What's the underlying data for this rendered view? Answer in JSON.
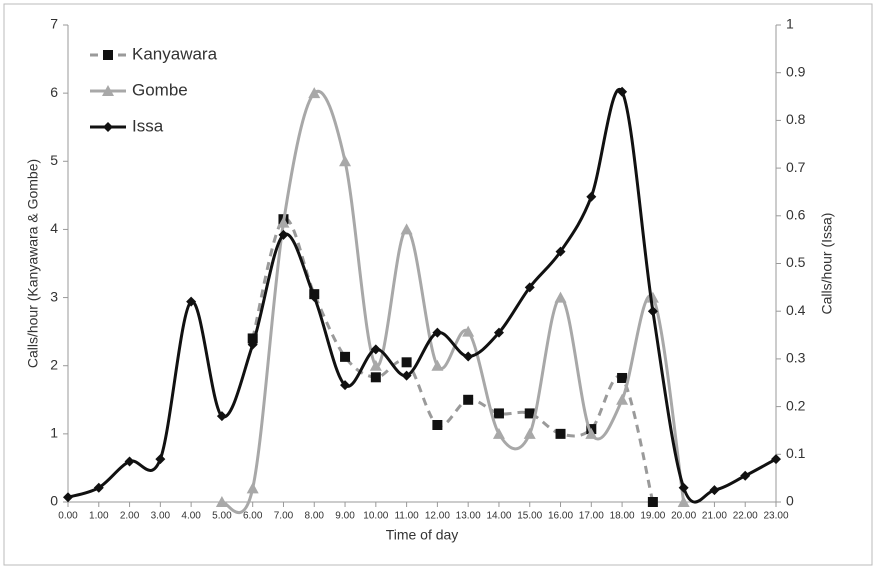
{
  "chart_data": {
    "type": "line",
    "x_label": "Time of day",
    "y_label": "Calls/hour (Kanyawara & Gombe)",
    "y2_label": "Calls/hour (Issa)",
    "categories": [
      "0.00",
      "1.00",
      "2.00",
      "3.00",
      "4.00",
      "5.00",
      "6.00",
      "7.00",
      "8.00",
      "9.00",
      "10.00",
      "11.00",
      "12.00",
      "13.00",
      "14.00",
      "15.00",
      "16.00",
      "17.00",
      "18.00",
      "19.00",
      "20.00",
      "21.00",
      "22.00",
      "23.00"
    ],
    "ylim": [
      0,
      7
    ],
    "yticks": [
      0,
      1,
      2,
      3,
      4,
      5,
      6,
      7
    ],
    "y2lim": [
      0,
      1
    ],
    "y2ticks": [
      0,
      0.1,
      0.2,
      0.3,
      0.4,
      0.5,
      0.6,
      0.7,
      0.8,
      0.9,
      1
    ],
    "legend": "top-left",
    "series": [
      {
        "name": "Kanyawara",
        "color": "#9a9a9a",
        "marker_color": "#111111",
        "marker": "square",
        "dashed": true,
        "values": [
          null,
          null,
          null,
          null,
          null,
          null,
          2.4,
          4.15,
          3.05,
          2.13,
          1.83,
          2.05,
          1.13,
          1.5,
          1.3,
          1.3,
          1.0,
          1.07,
          1.82,
          0,
          null,
          null,
          null,
          null
        ]
      },
      {
        "name": "Gombe",
        "color": "#a8a8a8",
        "marker_color": "#a8a8a8",
        "marker": "triangle",
        "dashed": false,
        "values": [
          null,
          null,
          null,
          null,
          null,
          0,
          0.2,
          4.1,
          6,
          5,
          2,
          4,
          2,
          2.5,
          1,
          1,
          3,
          1,
          1.5,
          3,
          0,
          null,
          null,
          null
        ]
      },
      {
        "name": "Issa",
        "color": "#111111",
        "marker_color": "#111111",
        "marker": "diamond",
        "dashed": false,
        "axis": "y2",
        "values": [
          0.01,
          0.03,
          0.085,
          0.09,
          0.42,
          0.18,
          0.33,
          0.56,
          0.43,
          0.245,
          0.32,
          0.265,
          0.355,
          0.305,
          0.355,
          0.45,
          0.525,
          0.64,
          0.86,
          0.4,
          0.03,
          0.025,
          0.055,
          0.09
        ]
      }
    ]
  }
}
